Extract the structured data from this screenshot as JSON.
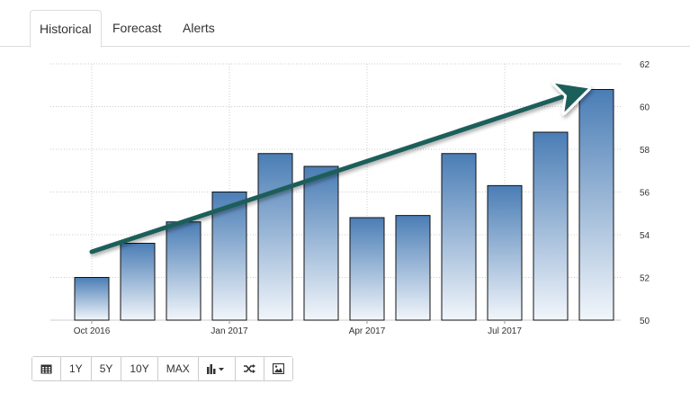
{
  "tabs": [
    {
      "label": "Historical",
      "active": true
    },
    {
      "label": "Forecast",
      "active": false
    },
    {
      "label": "Alerts",
      "active": false
    }
  ],
  "chart_data": {
    "type": "bar",
    "categories": [
      "Oct 2016",
      "Nov 2016",
      "Dec 2016",
      "Jan 2017",
      "Feb 2017",
      "Mar 2017",
      "Apr 2017",
      "May 2017",
      "Jun 2017",
      "Jul 2017",
      "Aug 2017",
      "Sep 2017"
    ],
    "values": [
      52.0,
      53.6,
      54.6,
      56.0,
      57.8,
      57.2,
      54.8,
      54.9,
      57.8,
      56.3,
      58.8,
      60.8
    ],
    "x_tick_labels": [
      "Oct 2016",
      "Jan 2017",
      "Apr 2017",
      "Jul 2017"
    ],
    "y_ticks": [
      50,
      52,
      54,
      56,
      58,
      60,
      62
    ],
    "ylim": [
      50,
      62
    ],
    "title": "",
    "xlabel": "",
    "ylabel": "",
    "grid": true,
    "bar_gradient": {
      "top": "#4a7db5",
      "bottom": "#f2f6fb"
    },
    "bar_stroke": "#111111",
    "trend_arrow": {
      "color": "#1f5f5a",
      "from": {
        "x": "Oct 2016",
        "y": 53.2
      },
      "to": {
        "x": "Sep 2017",
        "y": 60.8
      }
    }
  },
  "toolbar": [
    {
      "icon": "calendar-icon",
      "label": ""
    },
    {
      "label": "1Y"
    },
    {
      "label": "5Y"
    },
    {
      "label": "10Y"
    },
    {
      "label": "MAX"
    },
    {
      "icon": "bar-chart-icon",
      "label": ""
    },
    {
      "icon": "shuffle-icon",
      "label": ""
    },
    {
      "icon": "image-icon",
      "label": ""
    }
  ]
}
